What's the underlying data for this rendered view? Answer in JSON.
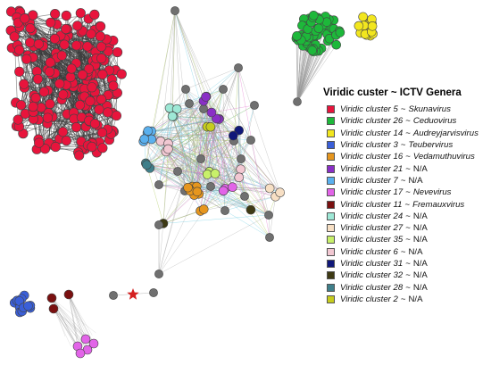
{
  "legend": {
    "title": "Viridic custer ~ ICTV Genera",
    "items": [
      {
        "cluster": "Viridic cluster 5",
        "genus": "Skunavirus",
        "genus_italic": true,
        "color": "#e8143c"
      },
      {
        "cluster": "Viridic cluster 26",
        "genus": "Ceduovirus",
        "genus_italic": true,
        "color": "#1db83a"
      },
      {
        "cluster": "Viridic cluster 14",
        "genus": "Audreyjarvisvirus",
        "genus_italic": true,
        "color": "#f2e61e"
      },
      {
        "cluster": "Viridic cluster 3",
        "genus": "Teubervirus",
        "genus_italic": true,
        "color": "#3a5fd8"
      },
      {
        "cluster": "Viridic cluster 16",
        "genus": "Vedamuthuvirus",
        "genus_italic": true,
        "color": "#e6961e"
      },
      {
        "cluster": "Viridic cluster 21",
        "genus": "N/A",
        "genus_italic": false,
        "color": "#8a2fc6"
      },
      {
        "cluster": "Viridic cluster 7",
        "genus": "N/A",
        "genus_italic": false,
        "color": "#5ab0ee"
      },
      {
        "cluster": "Viridic cluster 17",
        "genus": "Nevevirus",
        "genus_italic": true,
        "color": "#e264e8"
      },
      {
        "cluster": "Viridic cluster 11",
        "genus": "Fremauxvirus",
        "genus_italic": true,
        "color": "#7a1010"
      },
      {
        "cluster": "Viridic cluster 24",
        "genus": "N/A",
        "genus_italic": false,
        "color": "#9ee8d6"
      },
      {
        "cluster": "Viridic cluster 27",
        "genus": "N/A",
        "genus_italic": false,
        "color": "#f7dfc4"
      },
      {
        "cluster": "Viridic cluster 35",
        "genus": "N/A",
        "genus_italic": false,
        "color": "#c8f06a"
      },
      {
        "cluster": "Viridic cluster 6",
        "genus": "N/A",
        "genus_italic": false,
        "color": "#f2c8d2"
      },
      {
        "cluster": "Viridic cluster 31",
        "genus": "N/A",
        "genus_italic": false,
        "color": "#10187a"
      },
      {
        "cluster": "Viridic cluster 32",
        "genus": "N/A",
        "genus_italic": false,
        "color": "#3e3a14"
      },
      {
        "cluster": "Viridic cluster 28",
        "genus": "N/A",
        "genus_italic": false,
        "color": "#3f7f8a"
      },
      {
        "cluster": "Viridic cluster 2",
        "genus": "N/A",
        "genus_italic": false,
        "color": "#c6cc1e"
      }
    ]
  },
  "colors": {
    "unclustered_node": "#707070",
    "edge": "#9a9a9a",
    "dense_edge": "#3a3a3a",
    "star_marker": "#d42020"
  }
}
